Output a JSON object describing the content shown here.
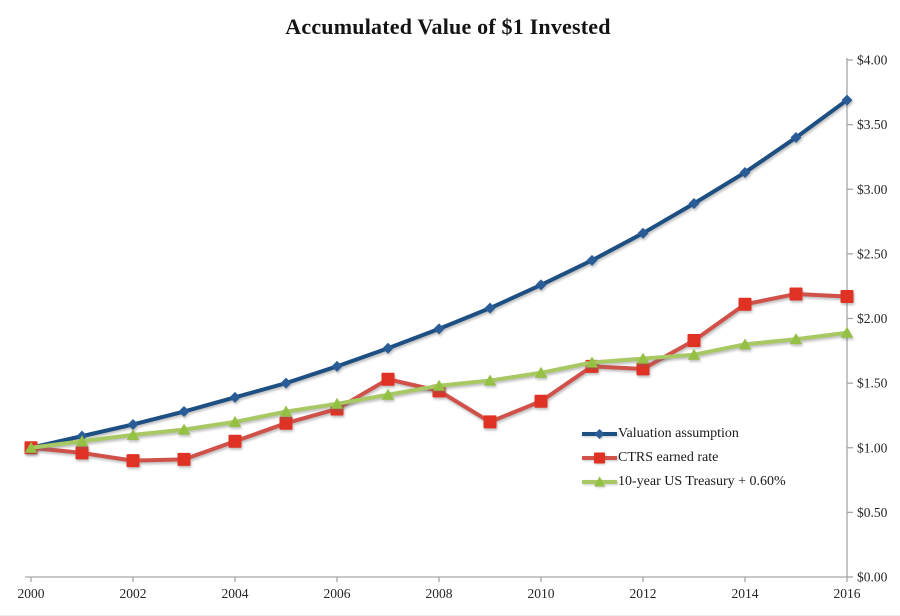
{
  "chart_data": {
    "type": "line",
    "title": "Accumulated Value of $1 Invested",
    "x": [
      2000,
      2001,
      2002,
      2003,
      2004,
      2005,
      2006,
      2007,
      2008,
      2009,
      2010,
      2011,
      2012,
      2013,
      2014,
      2015,
      2016
    ],
    "xticks": [
      2000,
      2002,
      2004,
      2006,
      2008,
      2010,
      2012,
      2014,
      2016
    ],
    "ylim": [
      0,
      4
    ],
    "ytick_step": 0.5,
    "ytick_labels": [
      "$0.00",
      "$0.50",
      "$1.00",
      "$1.50",
      "$2.00",
      "$2.50",
      "$3.00",
      "$3.50",
      "$4.00"
    ],
    "y_axis_side": "right",
    "grid": false,
    "legend_position": "inside-right",
    "axis_color": "#A6A6A6",
    "label_color": "#262626",
    "series": [
      {
        "name": "Valuation assumption",
        "marker": "diamond",
        "line_color": "#1D4F82",
        "marker_color": "#2A5D97",
        "values": [
          1.0,
          1.09,
          1.18,
          1.28,
          1.39,
          1.5,
          1.63,
          1.77,
          1.92,
          2.08,
          2.26,
          2.45,
          2.66,
          2.89,
          3.13,
          3.4,
          3.69
        ]
      },
      {
        "name": "CTRS earned rate",
        "marker": "square",
        "line_color": "#D0514A",
        "marker_color": "#DF3224",
        "values": [
          1.0,
          0.96,
          0.9,
          0.91,
          1.05,
          1.19,
          1.3,
          1.53,
          1.44,
          1.2,
          1.36,
          1.63,
          1.61,
          1.83,
          2.11,
          2.19,
          2.17
        ]
      },
      {
        "name": "10-year US Treasury + 0.60%",
        "marker": "triangle",
        "line_color": "#A8C863",
        "marker_color": "#94C044",
        "values": [
          1.0,
          1.05,
          1.1,
          1.14,
          1.2,
          1.28,
          1.34,
          1.41,
          1.48,
          1.52,
          1.58,
          1.66,
          1.69,
          1.72,
          1.8,
          1.84,
          1.89
        ]
      }
    ]
  }
}
